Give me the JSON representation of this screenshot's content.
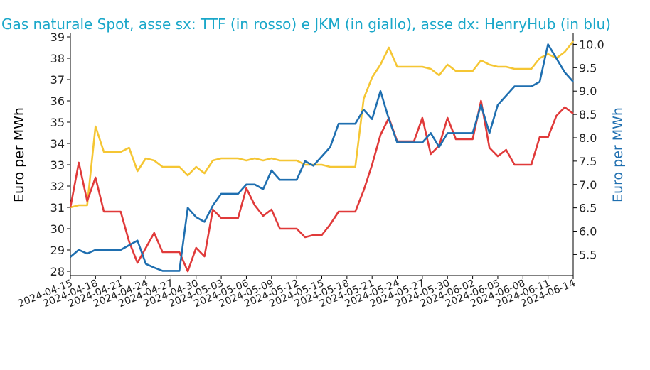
{
  "chart_data": {
    "type": "line",
    "title": "Gas naturale Spot, asse sx: TTF (in rosso) e JKM (in giallo), asse dx: HenryHub (in blu)",
    "ylabel_left": "Euro per MWh",
    "ylabel_right": "Euro per MWh",
    "ylim_left": [
      27.8,
      39.2
    ],
    "ylim_right": [
      5.05,
      10.25
    ],
    "yticks_left": [
      28,
      29,
      30,
      31,
      32,
      33,
      34,
      35,
      36,
      37,
      38,
      39
    ],
    "yticks_right": [
      5.5,
      6.0,
      6.5,
      7.0,
      7.5,
      8.0,
      8.5,
      9.0,
      9.5,
      10.0
    ],
    "x_start": "2024-04-15",
    "x_end": "2024-06-14",
    "x_ticks": [
      "2024-04-15",
      "2024-04-18",
      "2024-04-21",
      "2024-04-24",
      "2024-04-27",
      "2024-04-30",
      "2024-05-03",
      "2024-05-06",
      "2024-05-09",
      "2024-05-12",
      "2024-05-15",
      "2024-05-18",
      "2024-05-21",
      "2024-05-24",
      "2024-05-27",
      "2024-05-30",
      "2024-06-02",
      "2024-06-05",
      "2024-06-08",
      "2024-06-11",
      "2024-06-14"
    ],
    "colors": {
      "ttf": "#e03a3a",
      "jkm": "#f5c634",
      "henryhub": "#1f6fb0"
    },
    "series": [
      {
        "key": "ttf",
        "axis": "left",
        "points": [
          [
            "2024-04-15",
            31.0
          ],
          [
            "2024-04-16",
            33.1
          ],
          [
            "2024-04-17",
            31.3
          ],
          [
            "2024-04-18",
            32.4
          ],
          [
            "2024-04-19",
            30.8
          ],
          [
            "2024-04-20",
            30.8
          ],
          [
            "2024-04-21",
            30.8
          ],
          [
            "2024-04-22",
            29.4
          ],
          [
            "2024-04-23",
            28.4
          ],
          [
            "2024-04-24",
            29.1
          ],
          [
            "2024-04-25",
            29.8
          ],
          [
            "2024-04-26",
            28.9
          ],
          [
            "2024-04-27",
            28.9
          ],
          [
            "2024-04-28",
            28.9
          ],
          [
            "2024-04-29",
            28.0
          ],
          [
            "2024-04-30",
            29.1
          ],
          [
            "2024-05-01",
            28.7
          ],
          [
            "2024-05-02",
            30.9
          ],
          [
            "2024-05-03",
            30.5
          ],
          [
            "2024-05-04",
            30.5
          ],
          [
            "2024-05-05",
            30.5
          ],
          [
            "2024-05-06",
            31.9
          ],
          [
            "2024-05-07",
            31.1
          ],
          [
            "2024-05-08",
            30.6
          ],
          [
            "2024-05-09",
            30.9
          ],
          [
            "2024-05-10",
            30.0
          ],
          [
            "2024-05-11",
            30.0
          ],
          [
            "2024-05-12",
            30.0
          ],
          [
            "2024-05-13",
            29.6
          ],
          [
            "2024-05-14",
            29.7
          ],
          [
            "2024-05-15",
            29.7
          ],
          [
            "2024-05-16",
            30.2
          ],
          [
            "2024-05-17",
            30.8
          ],
          [
            "2024-05-18",
            30.8
          ],
          [
            "2024-05-19",
            30.8
          ],
          [
            "2024-05-20",
            31.8
          ],
          [
            "2024-05-21",
            33.0
          ],
          [
            "2024-05-22",
            34.4
          ],
          [
            "2024-05-23",
            35.2
          ],
          [
            "2024-05-24",
            34.1
          ],
          [
            "2024-05-25",
            34.1
          ],
          [
            "2024-05-26",
            34.1
          ],
          [
            "2024-05-27",
            35.2
          ],
          [
            "2024-05-28",
            33.5
          ],
          [
            "2024-05-29",
            33.9
          ],
          [
            "2024-05-30",
            35.2
          ],
          [
            "2024-05-31",
            34.2
          ],
          [
            "2024-06-01",
            34.2
          ],
          [
            "2024-06-02",
            34.2
          ],
          [
            "2024-06-03",
            36.0
          ],
          [
            "2024-06-04",
            33.8
          ],
          [
            "2024-06-05",
            33.4
          ],
          [
            "2024-06-06",
            33.7
          ],
          [
            "2024-06-07",
            33.0
          ],
          [
            "2024-06-08",
            33.0
          ],
          [
            "2024-06-09",
            33.0
          ],
          [
            "2024-06-10",
            34.3
          ],
          [
            "2024-06-11",
            34.3
          ],
          [
            "2024-06-12",
            35.3
          ],
          [
            "2024-06-13",
            35.7
          ],
          [
            "2024-06-14",
            35.4
          ]
        ]
      },
      {
        "key": "jkm",
        "axis": "left",
        "points": [
          [
            "2024-04-15",
            31.0
          ],
          [
            "2024-04-16",
            31.1
          ],
          [
            "2024-04-17",
            31.1
          ],
          [
            "2024-04-18",
            34.8
          ],
          [
            "2024-04-19",
            33.6
          ],
          [
            "2024-04-20",
            33.6
          ],
          [
            "2024-04-21",
            33.6
          ],
          [
            "2024-04-22",
            33.8
          ],
          [
            "2024-04-23",
            32.7
          ],
          [
            "2024-04-24",
            33.3
          ],
          [
            "2024-04-25",
            33.2
          ],
          [
            "2024-04-26",
            32.9
          ],
          [
            "2024-04-27",
            32.9
          ],
          [
            "2024-04-28",
            32.9
          ],
          [
            "2024-04-29",
            32.5
          ],
          [
            "2024-04-30",
            32.9
          ],
          [
            "2024-05-01",
            32.6
          ],
          [
            "2024-05-02",
            33.2
          ],
          [
            "2024-05-03",
            33.3
          ],
          [
            "2024-05-04",
            33.3
          ],
          [
            "2024-05-05",
            33.3
          ],
          [
            "2024-05-06",
            33.2
          ],
          [
            "2024-05-07",
            33.3
          ],
          [
            "2024-05-08",
            33.2
          ],
          [
            "2024-05-09",
            33.3
          ],
          [
            "2024-05-10",
            33.2
          ],
          [
            "2024-05-11",
            33.2
          ],
          [
            "2024-05-12",
            33.2
          ],
          [
            "2024-05-13",
            33.0
          ],
          [
            "2024-05-14",
            33.0
          ],
          [
            "2024-05-15",
            33.0
          ],
          [
            "2024-05-16",
            32.9
          ],
          [
            "2024-05-17",
            32.9
          ],
          [
            "2024-05-18",
            32.9
          ],
          [
            "2024-05-19",
            32.9
          ],
          [
            "2024-05-20",
            36.1
          ],
          [
            "2024-05-21",
            37.1
          ],
          [
            "2024-05-22",
            37.7
          ],
          [
            "2024-05-23",
            38.5
          ],
          [
            "2024-05-24",
            37.6
          ],
          [
            "2024-05-25",
            37.6
          ],
          [
            "2024-05-26",
            37.6
          ],
          [
            "2024-05-27",
            37.6
          ],
          [
            "2024-05-28",
            37.5
          ],
          [
            "2024-05-29",
            37.2
          ],
          [
            "2024-05-30",
            37.7
          ],
          [
            "2024-05-31",
            37.4
          ],
          [
            "2024-06-01",
            37.4
          ],
          [
            "2024-06-02",
            37.4
          ],
          [
            "2024-06-03",
            37.9
          ],
          [
            "2024-06-04",
            37.7
          ],
          [
            "2024-06-05",
            37.6
          ],
          [
            "2024-06-06",
            37.6
          ],
          [
            "2024-06-07",
            37.5
          ],
          [
            "2024-06-08",
            37.5
          ],
          [
            "2024-06-09",
            37.5
          ],
          [
            "2024-06-10",
            38.0
          ],
          [
            "2024-06-11",
            38.2
          ],
          [
            "2024-06-12",
            38.0
          ],
          [
            "2024-06-13",
            38.3
          ],
          [
            "2024-06-14",
            38.8
          ]
        ]
      },
      {
        "key": "henryhub",
        "axis": "right",
        "points": [
          [
            "2024-04-15",
            5.45
          ],
          [
            "2024-04-16",
            5.6
          ],
          [
            "2024-04-17",
            5.52
          ],
          [
            "2024-04-18",
            5.6
          ],
          [
            "2024-04-19",
            5.6
          ],
          [
            "2024-04-20",
            5.6
          ],
          [
            "2024-04-21",
            5.6
          ],
          [
            "2024-04-22",
            5.7
          ],
          [
            "2024-04-23",
            5.8
          ],
          [
            "2024-04-24",
            5.3
          ],
          [
            "2024-04-25",
            5.22
          ],
          [
            "2024-04-26",
            5.15
          ],
          [
            "2024-04-27",
            5.15
          ],
          [
            "2024-04-28",
            5.15
          ],
          [
            "2024-04-29",
            6.5
          ],
          [
            "2024-04-30",
            6.3
          ],
          [
            "2024-05-01",
            6.2
          ],
          [
            "2024-05-02",
            6.55
          ],
          [
            "2024-05-03",
            6.8
          ],
          [
            "2024-05-04",
            6.8
          ],
          [
            "2024-05-05",
            6.8
          ],
          [
            "2024-05-06",
            7.0
          ],
          [
            "2024-05-07",
            7.0
          ],
          [
            "2024-05-08",
            6.9
          ],
          [
            "2024-05-09",
            7.3
          ],
          [
            "2024-05-10",
            7.1
          ],
          [
            "2024-05-11",
            7.1
          ],
          [
            "2024-05-12",
            7.1
          ],
          [
            "2024-05-13",
            7.5
          ],
          [
            "2024-05-14",
            7.4
          ],
          [
            "2024-05-15",
            7.6
          ],
          [
            "2024-05-16",
            7.8
          ],
          [
            "2024-05-17",
            8.3
          ],
          [
            "2024-05-18",
            8.3
          ],
          [
            "2024-05-19",
            8.3
          ],
          [
            "2024-05-20",
            8.6
          ],
          [
            "2024-05-21",
            8.4
          ],
          [
            "2024-05-22",
            9.0
          ],
          [
            "2024-05-23",
            8.4
          ],
          [
            "2024-05-24",
            7.9
          ],
          [
            "2024-05-25",
            7.9
          ],
          [
            "2024-05-26",
            7.9
          ],
          [
            "2024-05-27",
            7.9
          ],
          [
            "2024-05-28",
            8.1
          ],
          [
            "2024-05-29",
            7.8
          ],
          [
            "2024-05-30",
            8.1
          ],
          [
            "2024-05-31",
            8.1
          ],
          [
            "2024-06-01",
            8.1
          ],
          [
            "2024-06-02",
            8.1
          ],
          [
            "2024-06-03",
            8.7
          ],
          [
            "2024-06-04",
            8.1
          ],
          [
            "2024-06-05",
            8.7
          ],
          [
            "2024-06-06",
            8.9
          ],
          [
            "2024-06-07",
            9.1
          ],
          [
            "2024-06-08",
            9.1
          ],
          [
            "2024-06-09",
            9.1
          ],
          [
            "2024-06-10",
            9.2
          ],
          [
            "2024-06-11",
            10.0
          ],
          [
            "2024-06-12",
            9.7
          ],
          [
            "2024-06-13",
            9.4
          ],
          [
            "2024-06-14",
            9.2
          ]
        ]
      }
    ]
  }
}
